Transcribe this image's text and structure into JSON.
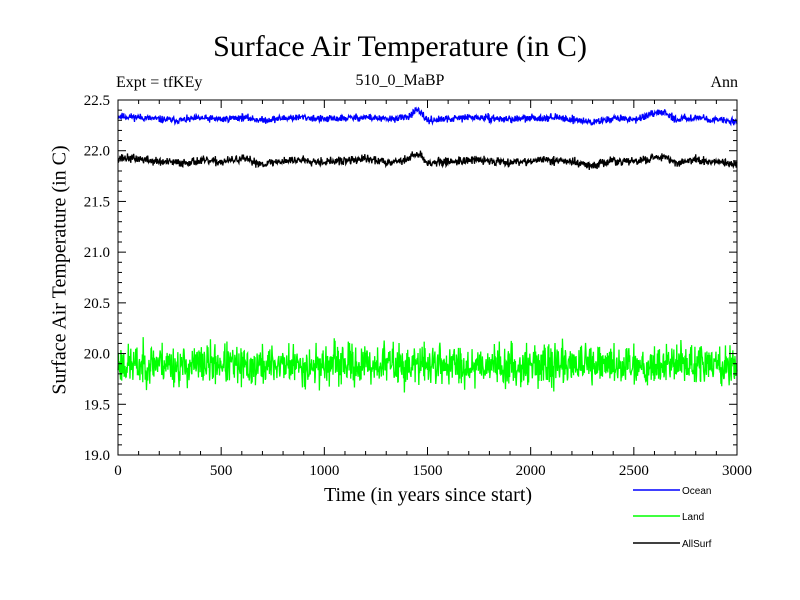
{
  "chart_data": {
    "type": "line",
    "title": "Surface Air Temperature (in C)",
    "subtitle": "510_0_MaBP",
    "left_label": "Expt = tfKEy",
    "right_label": "Ann",
    "xlabel": "Time (in years since start)",
    "ylabel": "Surface Air Temperature (in C)",
    "xlim": [
      0,
      3000
    ],
    "ylim": [
      19.0,
      22.5
    ],
    "xticks": [
      0,
      500,
      1000,
      1500,
      2000,
      2500,
      3000
    ],
    "yticks": [
      "19.0",
      "19.5",
      "20.0",
      "20.5",
      "21.0",
      "21.5",
      "22.0",
      "22.5"
    ],
    "grid": false,
    "legend_position": "bottom-right, below plot",
    "series": [
      {
        "name": "Ocean",
        "color": "#0000ff",
        "x": [
          0,
          100,
          200,
          300,
          400,
          500,
          600,
          700,
          800,
          900,
          1000,
          1100,
          1200,
          1300,
          1400,
          1450,
          1500,
          1600,
          1700,
          1800,
          1900,
          2000,
          2100,
          2200,
          2300,
          2350,
          2400,
          2500,
          2600,
          2650,
          2700,
          2800,
          2900,
          3000
        ],
        "values": [
          22.34,
          22.33,
          22.31,
          22.3,
          22.32,
          22.31,
          22.33,
          22.3,
          22.32,
          22.33,
          22.31,
          22.32,
          22.33,
          22.31,
          22.33,
          22.4,
          22.3,
          22.31,
          22.33,
          22.32,
          22.31,
          22.32,
          22.33,
          22.31,
          22.28,
          22.3,
          22.32,
          22.31,
          22.36,
          22.38,
          22.31,
          22.33,
          22.3,
          22.29
        ]
      },
      {
        "name": "Land",
        "color": "#00ff00",
        "x": [
          0,
          100,
          200,
          300,
          400,
          500,
          600,
          700,
          800,
          900,
          1000,
          1100,
          1200,
          1300,
          1400,
          1500,
          1600,
          1700,
          1800,
          1900,
          2000,
          2100,
          2200,
          2300,
          2400,
          2500,
          2600,
          2700,
          2800,
          2900,
          3000
        ],
        "values": [
          19.9,
          19.88,
          19.92,
          19.87,
          19.89,
          19.91,
          19.86,
          19.88,
          19.9,
          19.87,
          19.89,
          19.9,
          19.88,
          19.91,
          19.87,
          19.9,
          19.89,
          19.88,
          19.9,
          19.87,
          19.89,
          19.88,
          19.91,
          19.87,
          19.89,
          19.9,
          19.88,
          19.92,
          19.89,
          19.88,
          19.87
        ]
      },
      {
        "name": "AllSurf",
        "color": "#000000",
        "x": [
          0,
          100,
          200,
          300,
          400,
          500,
          600,
          700,
          800,
          900,
          1000,
          1100,
          1200,
          1300,
          1400,
          1450,
          1500,
          1600,
          1700,
          1800,
          1900,
          2000,
          2100,
          2200,
          2300,
          2350,
          2400,
          2500,
          2600,
          2650,
          2700,
          2800,
          2900,
          3000
        ],
        "values": [
          21.93,
          21.92,
          21.89,
          21.88,
          21.9,
          21.89,
          21.92,
          21.87,
          21.9,
          21.91,
          21.89,
          21.9,
          21.92,
          21.89,
          21.91,
          21.98,
          21.88,
          21.89,
          21.91,
          21.9,
          21.89,
          21.9,
          21.91,
          21.89,
          21.85,
          21.88,
          21.9,
          21.89,
          21.93,
          21.95,
          21.88,
          21.91,
          21.88,
          21.87
        ]
      }
    ]
  }
}
